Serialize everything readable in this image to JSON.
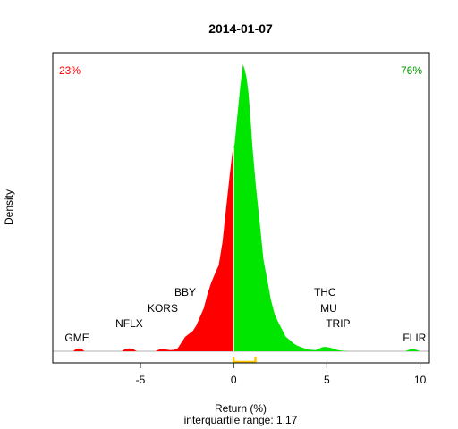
{
  "chart_data": {
    "type": "area",
    "title": "2014-01-07",
    "xlabel": "Return (%)",
    "subtitle": "interquartile range: 1.17",
    "ylabel": "Density",
    "xlim": [
      -9.7,
      10.5
    ],
    "ylim": [
      0,
      1
    ],
    "x_ticks": [
      -5,
      0,
      5,
      10
    ],
    "x_tick_labels": [
      "-5",
      "0",
      "5",
      "10"
    ],
    "pct_negative": "23%",
    "pct_positive": "76%",
    "colors": {
      "negative": "#ff0000",
      "positive": "#00e600",
      "iqr": "#ffc800",
      "neg_label": "#ff0000",
      "pos_label": "#009900"
    },
    "iqr": [
      0,
      1.17
    ],
    "density": {
      "x": [
        -8.6,
        -8.45,
        -8.3,
        -8.15,
        -8.0,
        -6.0,
        -5.8,
        -5.6,
        -5.4,
        -5.2,
        -4.2,
        -4.0,
        -3.8,
        -3.6,
        -3.4,
        -3.2,
        -3.0,
        -2.8,
        -2.6,
        -2.4,
        -2.2,
        -2.0,
        -1.8,
        -1.6,
        -1.4,
        -1.2,
        -1.0,
        -0.8,
        -0.6,
        -0.4,
        -0.2,
        -0.05,
        0.05,
        0.2,
        0.35,
        0.5,
        0.6,
        0.7,
        0.8,
        0.9,
        1.0,
        1.2,
        1.4,
        1.6,
        1.8,
        2.0,
        2.2,
        2.4,
        2.6,
        2.8,
        3.0,
        3.2,
        3.4,
        3.6,
        3.8,
        4.0,
        4.4,
        4.6,
        4.8,
        5.0,
        5.2,
        5.4,
        5.6,
        5.8,
        6.0,
        6.2,
        9.2,
        9.4,
        9.6,
        9.8,
        10.0
      ],
      "y": [
        0,
        0.008,
        0.01,
        0.008,
        0,
        0,
        0.008,
        0.01,
        0.008,
        0,
        0,
        0.006,
        0.008,
        0.006,
        0.004,
        0.005,
        0.01,
        0.03,
        0.05,
        0.06,
        0.07,
        0.09,
        0.12,
        0.15,
        0.2,
        0.24,
        0.27,
        0.3,
        0.38,
        0.5,
        0.62,
        0.7,
        0.72,
        0.82,
        0.92,
        1.0,
        0.98,
        0.95,
        0.9,
        0.82,
        0.72,
        0.57,
        0.45,
        0.32,
        0.25,
        0.18,
        0.13,
        0.1,
        0.075,
        0.05,
        0.04,
        0.028,
        0.02,
        0.015,
        0.01,
        0.006,
        0.004,
        0.01,
        0.015,
        0.015,
        0.012,
        0.008,
        0.004,
        0.002,
        0.001,
        0,
        0,
        0.005,
        0.008,
        0.005,
        0
      ]
    },
    "stock_labels": [
      {
        "text": "GME",
        "x": -8.4,
        "row": 0
      },
      {
        "text": "NFLX",
        "x": -5.6,
        "row": 1
      },
      {
        "text": "KORS",
        "x": -3.8,
        "row": 2
      },
      {
        "text": "BBY",
        "x": -2.6,
        "row": 3
      },
      {
        "text": "THC",
        "x": 4.9,
        "row": 3
      },
      {
        "text": "MU",
        "x": 5.1,
        "row": 2
      },
      {
        "text": "TRIP",
        "x": 5.6,
        "row": 1
      },
      {
        "text": "FLIR",
        "x": 9.7,
        "row": 0
      }
    ]
  }
}
